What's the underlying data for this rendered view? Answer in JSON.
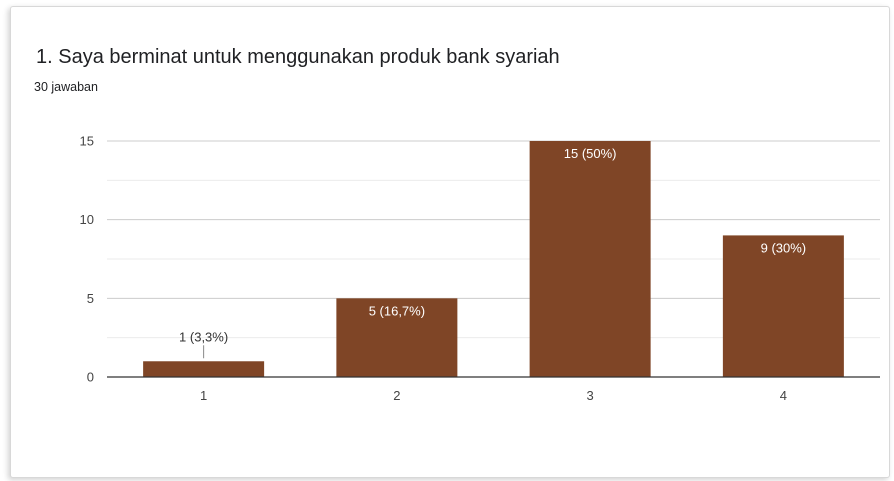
{
  "question": {
    "title": "1. Saya berminat untuk menggunakan produk bank syariah",
    "responses": "30 jawaban"
  },
  "colors": {
    "bar": "#7f4526",
    "grid": "#ebebeb",
    "axis": "#333333",
    "label_inside": "#ffffff",
    "label_outside": "#333333"
  },
  "chart_data": {
    "type": "bar",
    "title": "1. Saya berminat untuk menggunakan produk bank syariah",
    "subtitle": "30 jawaban",
    "categories": [
      "1",
      "2",
      "3",
      "4"
    ],
    "values": [
      1,
      5,
      15,
      9
    ],
    "data_labels": [
      "1 (3,3%)",
      "5 (16,7%)",
      "15 (50%)",
      "9 (30%)"
    ],
    "ylim": [
      0,
      15
    ],
    "yticks": [
      0,
      5,
      10,
      15
    ],
    "minor_gridlines": [
      2.5,
      7.5,
      12.5
    ],
    "grid": true,
    "xlabel": "",
    "ylabel": ""
  }
}
